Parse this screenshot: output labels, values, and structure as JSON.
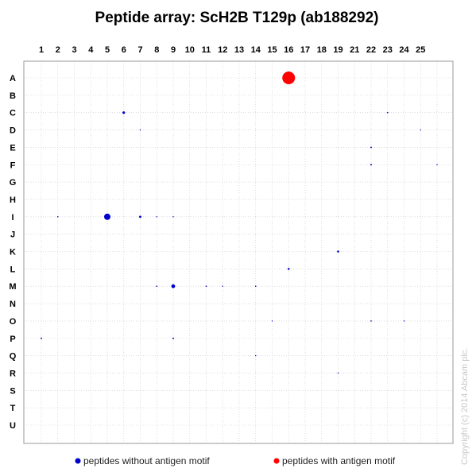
{
  "chart_data": {
    "type": "scatter",
    "title": "Peptide array: ScH2B T129p (ab188292)",
    "xlabel": "",
    "ylabel": "",
    "x_ticks": [
      "1",
      "2",
      "3",
      "4",
      "5",
      "6",
      "7",
      "8",
      "9",
      "10",
      "11",
      "12",
      "13",
      "14",
      "15",
      "16",
      "17",
      "18",
      "19",
      "21",
      "22",
      "23",
      "24",
      "25"
    ],
    "y_ticks": [
      "A",
      "B",
      "C",
      "D",
      "E",
      "F",
      "G",
      "H",
      "I",
      "J",
      "K",
      "L",
      "M",
      "N",
      "O",
      "P",
      "Q",
      "R",
      "S",
      "T",
      "U"
    ],
    "grid": true,
    "legend_position": "bottom",
    "legend": [
      {
        "name": "peptides without antigen motif",
        "color": "#0000cc"
      },
      {
        "name": "peptides with antigen motif",
        "color": "#ff0000"
      }
    ],
    "series": [
      {
        "name": "peptides without antigen motif",
        "color": "#0000cc",
        "points": [
          {
            "col": "6",
            "row": "C",
            "size": 2
          },
          {
            "col": "22",
            "row": "C",
            "size": 1
          },
          {
            "col": "7",
            "row": "D",
            "size": 0.5
          },
          {
            "col": "24",
            "row": "D",
            "size": 0.5
          },
          {
            "col": "21",
            "row": "E",
            "size": 1.2
          },
          {
            "col": "21",
            "row": "F",
            "size": 1.2
          },
          {
            "col": "25",
            "row": "F",
            "size": 0.5
          },
          {
            "col": "2",
            "row": "I",
            "size": 1
          },
          {
            "col": "5",
            "row": "I",
            "size": 5
          },
          {
            "col": "7",
            "row": "I",
            "size": 1.8
          },
          {
            "col": "8",
            "row": "I",
            "size": 0.5
          },
          {
            "col": "9",
            "row": "I",
            "size": 0.5
          },
          {
            "col": "19",
            "row": "K",
            "size": 1.6
          },
          {
            "col": "16",
            "row": "L",
            "size": 1.6
          },
          {
            "col": "8",
            "row": "M",
            "size": 1
          },
          {
            "col": "9",
            "row": "M",
            "size": 3
          },
          {
            "col": "11",
            "row": "M",
            "size": 1
          },
          {
            "col": "12",
            "row": "M",
            "size": 0.5
          },
          {
            "col": "14",
            "row": "M",
            "size": 1
          },
          {
            "col": "15",
            "row": "O",
            "size": 0.5
          },
          {
            "col": "21",
            "row": "O",
            "size": 1
          },
          {
            "col": "23",
            "row": "O",
            "size": 0.5
          },
          {
            "col": "1",
            "row": "P",
            "size": 1.2
          },
          {
            "col": "9",
            "row": "P",
            "size": 1.2
          },
          {
            "col": "14",
            "row": "Q",
            "size": 0.6
          },
          {
            "col": "19",
            "row": "R",
            "size": 0.6
          }
        ]
      },
      {
        "name": "peptides with antigen motif",
        "color": "#ff0000",
        "points": [
          {
            "col": "16",
            "row": "A",
            "size": 10
          }
        ]
      }
    ]
  },
  "copyright": "Copyright (c) 2014 Abcam plc."
}
